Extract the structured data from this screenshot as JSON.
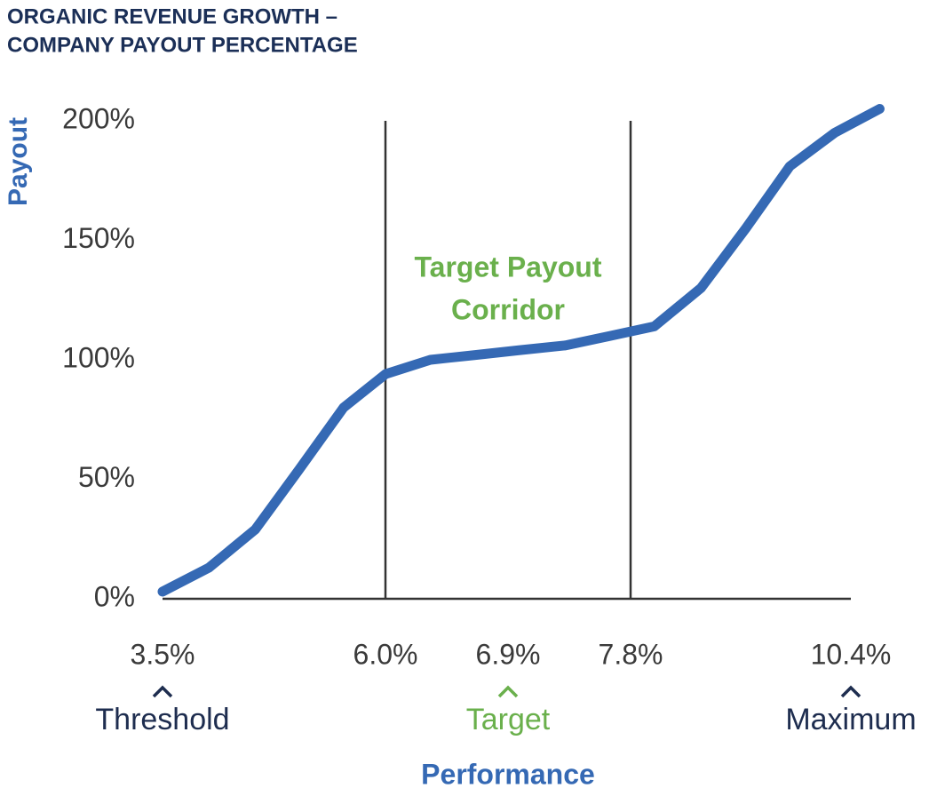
{
  "chart_data": {
    "type": "line",
    "title": [
      "ORGANIC REVENUE GROWTH –",
      "COMPANY PAYOUT PERCENTAGE"
    ],
    "y_label": "Payout",
    "x_label": "Performance",
    "annotation": [
      "Target Payout",
      "Corridor"
    ],
    "annotation_color": "#6ab04c",
    "corridor": [
      6.0,
      7.8
    ],
    "x": [
      3.5,
      4.02,
      4.54,
      5.03,
      5.53,
      6.0,
      6.33,
      6.66,
      6.98,
      7.32,
      7.65,
      8.08,
      8.63,
      9.16,
      9.68,
      10.21,
      10.74
    ],
    "series": [
      {
        "name": "Payout",
        "color": "#3569b4",
        "values": [
          3,
          13,
          29,
          54,
          80,
          94,
          100,
          102,
          104,
          106,
          110,
          114,
          130,
          155,
          181,
          195,
          205
        ]
      }
    ],
    "xlim": [
      3.5,
      10.4
    ],
    "ylim": [
      0,
      200
    ],
    "xticks": [
      {
        "value": 3.5,
        "label": "3.5%"
      },
      {
        "value": 6.0,
        "label": "6.0%"
      },
      {
        "value": 6.9,
        "label": "6.9%"
      },
      {
        "value": 7.8,
        "label": "7.8%"
      },
      {
        "value": 10.4,
        "label": "10.4%"
      }
    ],
    "yticks": [
      {
        "value": 0,
        "label": "0%"
      },
      {
        "value": 50,
        "label": "50%"
      },
      {
        "value": 100,
        "label": "100%"
      },
      {
        "value": 150,
        "label": "150%"
      },
      {
        "value": 200,
        "label": "200%"
      }
    ],
    "milestones": [
      {
        "label": "Threshold",
        "value": 3.5,
        "color": "#1e2d4f"
      },
      {
        "label": "Target",
        "value": 6.9,
        "color": "#6ab04c"
      },
      {
        "label": "Maximum",
        "value": 10.4,
        "color": "#1e2d4f"
      }
    ]
  }
}
